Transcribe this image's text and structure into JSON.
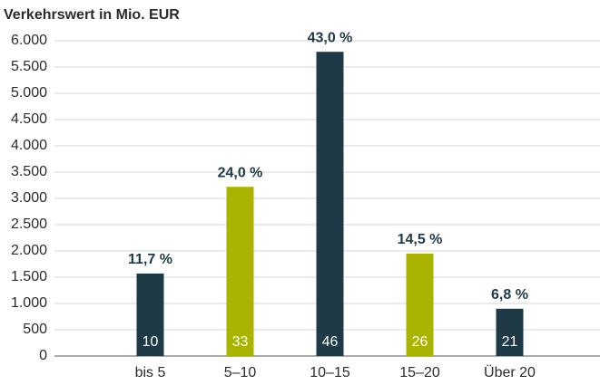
{
  "chart_data": {
    "type": "bar",
    "title": "Verkehrswert in Mio. EUR",
    "categories": [
      "bis 5",
      "5–10",
      "10–15",
      "15–20",
      "Über 20"
    ],
    "values": [
      1570,
      3220,
      5790,
      1950,
      900
    ],
    "colors": [
      "#1e3a46",
      "#a8b400",
      "#1e3a46",
      "#a8b400",
      "#1e3a46"
    ],
    "percent_labels": [
      "11,7 %",
      "24,0 %",
      "43,0 %",
      "14,5 %",
      "6,8 %"
    ],
    "counts": [
      10,
      33,
      46,
      26,
      21
    ],
    "ylim": [
      0,
      6000
    ],
    "yticks": [
      0,
      500,
      {
        "value": 1000,
        "label": "1.000"
      },
      {
        "value": 1500,
        "label": "1.500"
      },
      {
        "value": 2000,
        "label": "2.000"
      },
      {
        "value": 2500,
        "label": "2.500"
      },
      {
        "value": 3000,
        "label": "3.000"
      },
      {
        "value": 3500,
        "label": "3.500"
      },
      {
        "value": 4000,
        "label": "4.000"
      },
      {
        "value": 4500,
        "label": "4.500"
      },
      {
        "value": 5000,
        "label": "5.000"
      },
      {
        "value": 5500,
        "label": "5.500"
      },
      {
        "value": 6000,
        "label": "6.000"
      }
    ],
    "grid": true
  }
}
